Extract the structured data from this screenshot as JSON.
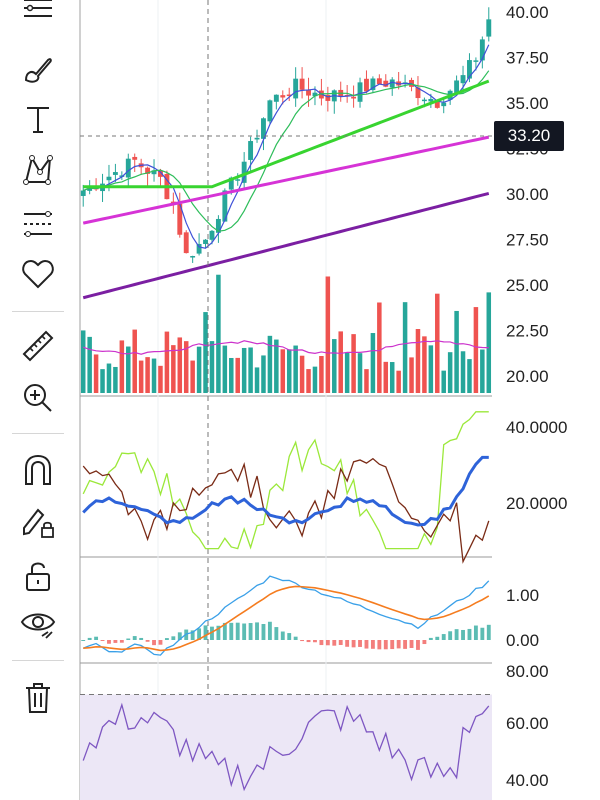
{
  "toolbar": {
    "items": [
      {
        "icon": "lines-icon"
      },
      {
        "icon": "brush-icon"
      },
      {
        "icon": "text-icon"
      },
      {
        "icon": "pattern-icon"
      },
      {
        "icon": "prediction-icon"
      },
      {
        "icon": "heart-icon"
      },
      {
        "icon": "ruler-icon"
      },
      {
        "icon": "zoom-in-icon"
      },
      {
        "icon": "magnet-icon"
      },
      {
        "icon": "lock-drawing-icon"
      },
      {
        "icon": "unlock-icon"
      },
      {
        "icon": "eye-icon"
      },
      {
        "icon": "trash-icon"
      }
    ]
  },
  "price_axis": {
    "labels": [
      "40.00",
      "37.50",
      "35.00",
      "32.50",
      "30.00",
      "27.50",
      "25.00",
      "22.50",
      "20.00"
    ],
    "current_price": "33.20"
  },
  "indicator1_axis": {
    "labels": [
      "40.0000",
      "20.0000"
    ]
  },
  "macd_axis": {
    "labels": [
      "1.00",
      "0.00"
    ]
  },
  "rsi_axis": {
    "labels": [
      "80.00",
      "60.00",
      "40.00"
    ]
  },
  "colors": {
    "up": "#26a69a",
    "down": "#ef5350",
    "ma_blue": "#3f51d8",
    "ma_green_thin": "#2ebd5b",
    "ma_green": "#38d430",
    "ma_magenta": "#d633d6",
    "ma_purple": "#7b1fa2",
    "ind_lime": "#9be83a",
    "ind_brown": "#7a2b16",
    "ind_blue": "#2e63d9",
    "macd_blue": "#3aa0e8",
    "macd_orange": "#f57c1f",
    "rsi_line": "#7e57c2",
    "rsi_band": "#ece7f6"
  }
}
